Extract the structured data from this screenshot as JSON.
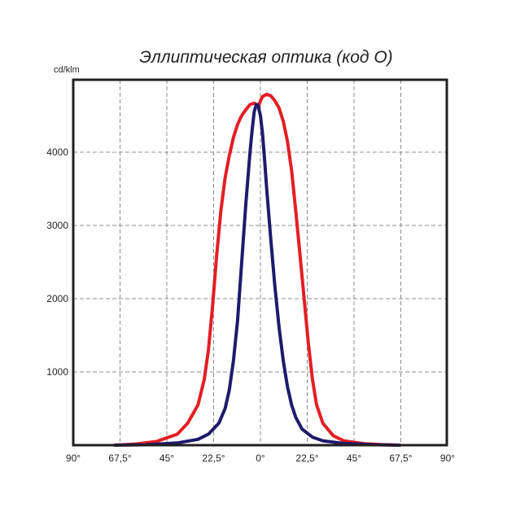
{
  "chart_data": {
    "type": "line",
    "title": "Эллиптическая оптика (код О)",
    "ylabel": "cd/klm",
    "xlim": [
      -90,
      90
    ],
    "ylim": [
      0,
      5000
    ],
    "grid": true,
    "legend": "none",
    "x_ticks": [
      {
        "value": -90,
        "label": "90°"
      },
      {
        "value": -67.5,
        "label": "67,5°"
      },
      {
        "value": -45,
        "label": "45°"
      },
      {
        "value": -22.5,
        "label": "22,5°"
      },
      {
        "value": 0,
        "label": "0°"
      },
      {
        "value": 22.5,
        "label": "22,5°"
      },
      {
        "value": 45,
        "label": "45°"
      },
      {
        "value": 67.5,
        "label": "67,5°"
      },
      {
        "value": 90,
        "label": "90°"
      }
    ],
    "y_ticks": [
      {
        "value": 1000,
        "label": "1000"
      },
      {
        "value": 2000,
        "label": "2000"
      },
      {
        "value": 3000,
        "label": "3000"
      },
      {
        "value": 4000,
        "label": "4000"
      }
    ],
    "series": [
      {
        "color": "#e31e24",
        "x": [
          -70,
          -60,
          -50,
          -40,
          -35,
          -30,
          -27,
          -25,
          -23,
          -21,
          -19,
          -17,
          -15,
          -13,
          -11,
          -9,
          -7,
          -5,
          -3,
          -2,
          -1,
          0,
          1,
          3,
          5,
          7,
          9,
          11,
          13,
          15,
          17,
          19,
          21,
          23,
          25,
          27,
          30,
          35,
          40,
          50,
          60,
          67
        ],
        "y": [
          0,
          15,
          50,
          150,
          300,
          550,
          900,
          1300,
          1900,
          2600,
          3200,
          3650,
          3950,
          4200,
          4380,
          4500,
          4580,
          4650,
          4670,
          4650,
          4620,
          4700,
          4760,
          4790,
          4770,
          4700,
          4600,
          4420,
          4150,
          3750,
          3200,
          2600,
          2000,
          1400,
          900,
          550,
          300,
          130,
          60,
          20,
          5,
          0
        ]
      },
      {
        "color": "#1f1a6b",
        "x": [
          -70,
          -55,
          -40,
          -30,
          -25,
          -20,
          -17,
          -15,
          -13,
          -11,
          -9,
          -7,
          -5,
          -4,
          -3,
          -2,
          -1.5,
          -1,
          0,
          1,
          2,
          3,
          5,
          7,
          9,
          11,
          13,
          15,
          17,
          20,
          25,
          30,
          40,
          55,
          67
        ],
        "y": [
          0,
          5,
          30,
          80,
          150,
          300,
          500,
          750,
          1150,
          1700,
          2500,
          3300,
          4000,
          4300,
          4550,
          4650,
          4650,
          4620,
          4500,
          4250,
          3900,
          3500,
          2800,
          2150,
          1600,
          1150,
          800,
          550,
          380,
          220,
          110,
          60,
          25,
          5,
          0
        ]
      }
    ]
  }
}
